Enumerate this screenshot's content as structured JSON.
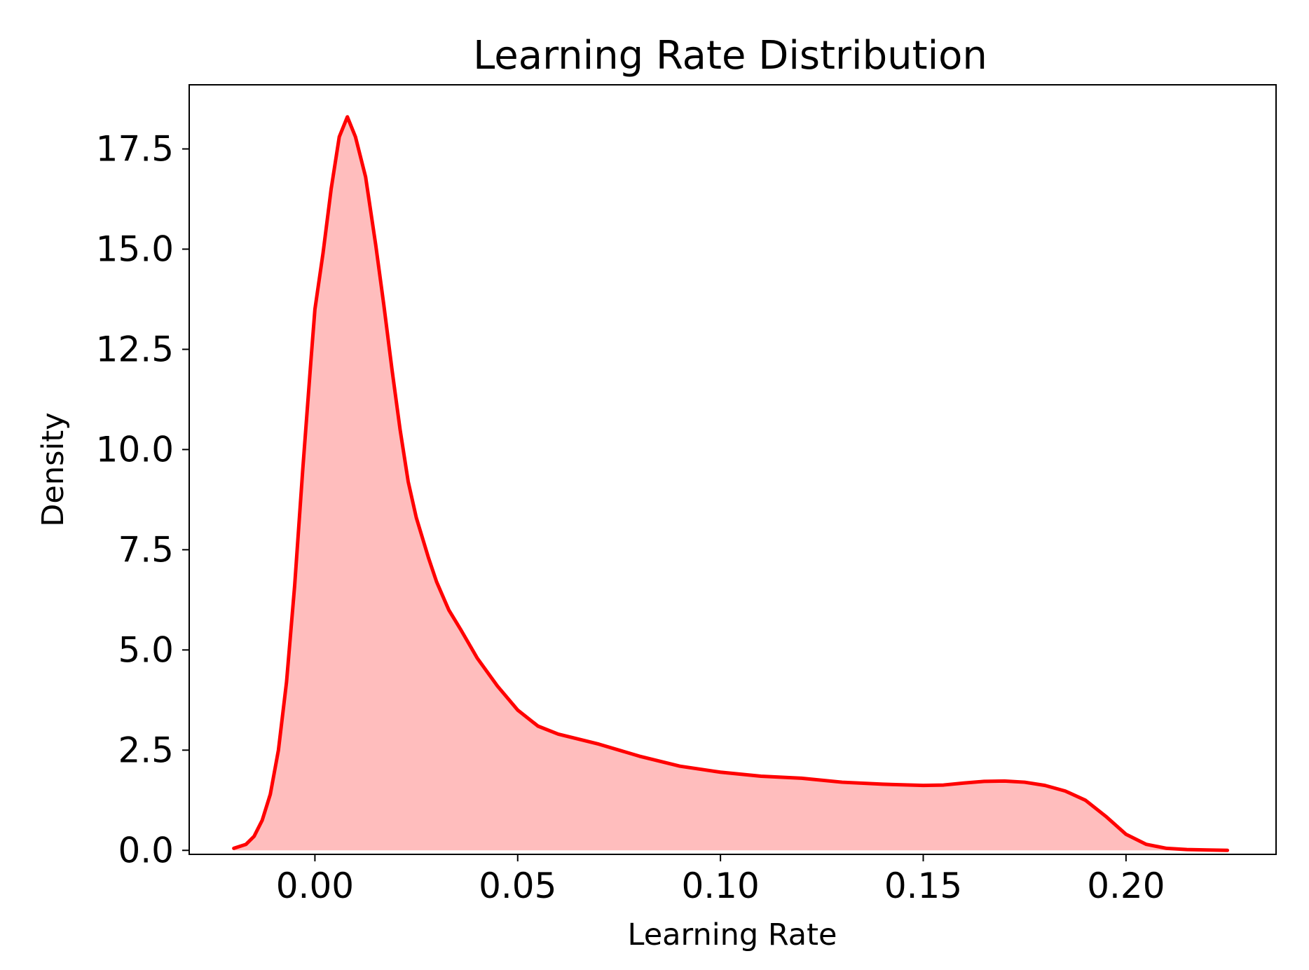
{
  "chart_data": {
    "type": "area",
    "title": "Learning Rate Distribution",
    "xlabel": "Learning Rate",
    "ylabel": "Density",
    "xlim": [
      -0.031,
      0.237
    ],
    "ylim": [
      -0.1,
      19.1
    ],
    "xticks": [
      0.0,
      0.05,
      0.1,
      0.15,
      0.2
    ],
    "xtick_labels": [
      "0.00",
      "0.05",
      "0.10",
      "0.15",
      "0.20"
    ],
    "yticks": [
      0.0,
      2.5,
      5.0,
      7.5,
      10.0,
      12.5,
      15.0,
      17.5
    ],
    "ytick_labels": [
      "0.0",
      "2.5",
      "5.0",
      "7.5",
      "10.0",
      "12.5",
      "15.0",
      "17.5"
    ],
    "grid": false,
    "legend": false,
    "series": [
      {
        "line_color": "#ff0000",
        "fill_color": "#ffbdbd",
        "x": [
          -0.02,
          -0.017,
          -0.015,
          -0.013,
          -0.011,
          -0.009,
          -0.007,
          -0.005,
          -0.003,
          -0.001,
          0.0,
          0.002,
          0.004,
          0.006,
          0.008,
          0.01,
          0.0125,
          0.015,
          0.017,
          0.019,
          0.021,
          0.023,
          0.025,
          0.028,
          0.03,
          0.033,
          0.036,
          0.04,
          0.045,
          0.05,
          0.055,
          0.06,
          0.07,
          0.08,
          0.09,
          0.1,
          0.11,
          0.12,
          0.13,
          0.14,
          0.15,
          0.155,
          0.16,
          0.165,
          0.17,
          0.175,
          0.18,
          0.185,
          0.19,
          0.195,
          0.2,
          0.205,
          0.21,
          0.215,
          0.22,
          0.225
        ],
        "y": [
          0.05,
          0.15,
          0.35,
          0.75,
          1.4,
          2.5,
          4.2,
          6.6,
          9.5,
          12.2,
          13.5,
          14.9,
          16.5,
          17.8,
          18.3,
          17.8,
          16.8,
          15.1,
          13.6,
          12.0,
          10.5,
          9.2,
          8.3,
          7.3,
          6.7,
          6.0,
          5.5,
          4.8,
          4.1,
          3.5,
          3.1,
          2.9,
          2.65,
          2.35,
          2.1,
          1.95,
          1.85,
          1.8,
          1.7,
          1.65,
          1.62,
          1.63,
          1.68,
          1.72,
          1.73,
          1.7,
          1.62,
          1.48,
          1.25,
          0.85,
          0.4,
          0.15,
          0.05,
          0.02,
          0.01,
          0.0
        ]
      }
    ]
  }
}
